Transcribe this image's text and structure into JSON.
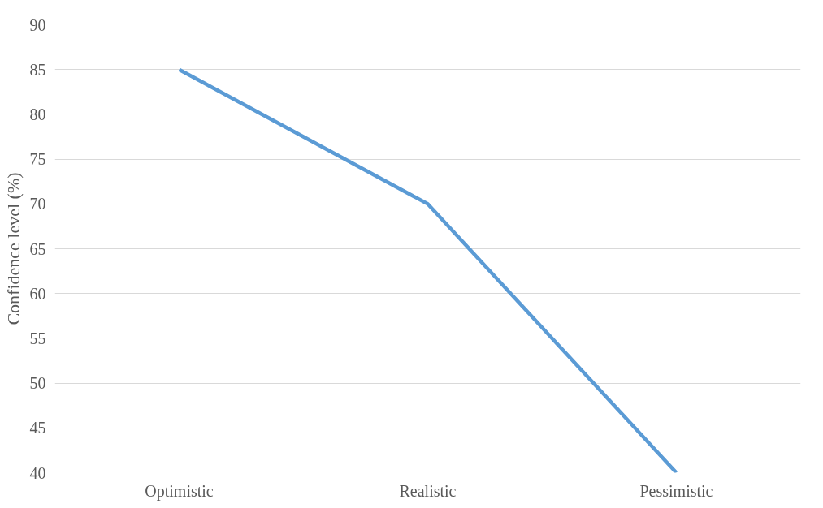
{
  "chart_data": {
    "type": "line",
    "ylabel": "Confidence level (%)",
    "categories": [
      "Optimistic",
      "Realistic",
      "Pessimistic"
    ],
    "series": [
      {
        "color": "#5b9bd5",
        "values": [
          85,
          70,
          40
        ]
      }
    ],
    "ylim": [
      40,
      90
    ],
    "yticks": [
      40,
      45,
      50,
      55,
      60,
      65,
      70,
      75,
      80,
      85,
      90
    ],
    "grid": "y",
    "marker": "none",
    "line_style": "solid"
  }
}
